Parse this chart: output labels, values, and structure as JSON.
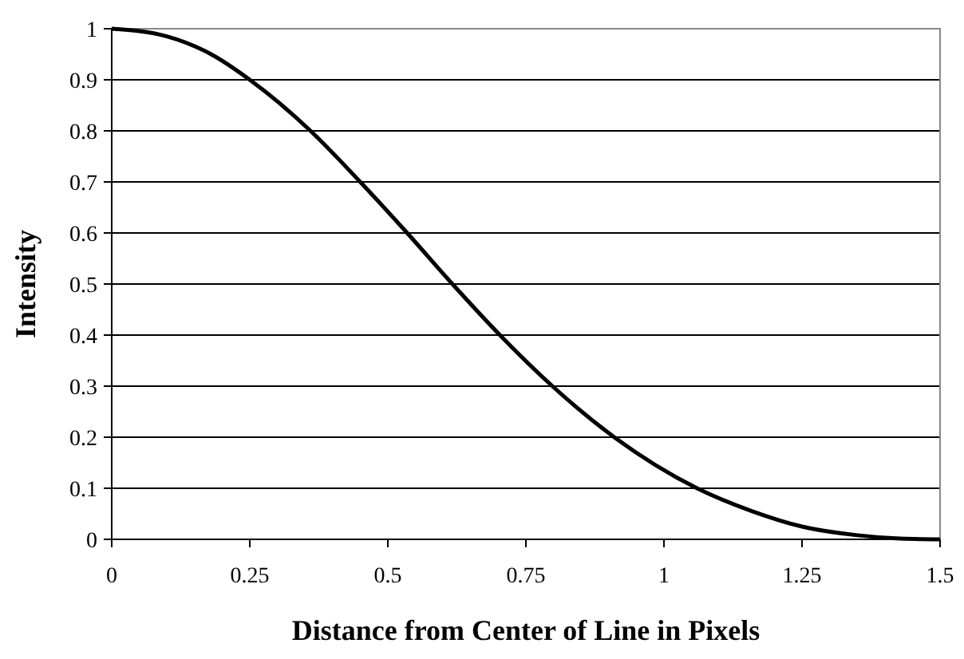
{
  "chart_data": {
    "type": "line",
    "xlabel": "Distance from Center of Line in Pixels",
    "ylabel": "Intensity",
    "x": [
      0,
      0.1,
      0.18,
      0.25,
      0.36,
      0.45,
      0.535,
      0.617,
      0.703,
      0.798,
      0.91,
      1.06,
      1.16,
      1.25,
      1.35,
      1.42,
      1.5
    ],
    "series": [
      {
        "color": "#000000",
        "values": [
          1,
          0.985,
          0.95,
          0.9,
          0.8,
          0.7,
          0.6,
          0.5,
          0.4,
          0.3,
          0.2,
          0.1,
          0.055,
          0.025,
          0.008,
          0.002,
          0
        ]
      }
    ],
    "xlim": [
      0,
      1.5
    ],
    "xticks": [
      0,
      0.25,
      0.5,
      0.75,
      1,
      1.25,
      1.5
    ],
    "ylim": [
      0,
      1
    ],
    "yticks": [
      0,
      0.1,
      0.2,
      0.3,
      0.4,
      0.5,
      0.6,
      0.7,
      0.8,
      0.9,
      1
    ],
    "grid": "y",
    "marker": "none",
    "line_style": "solid"
  }
}
